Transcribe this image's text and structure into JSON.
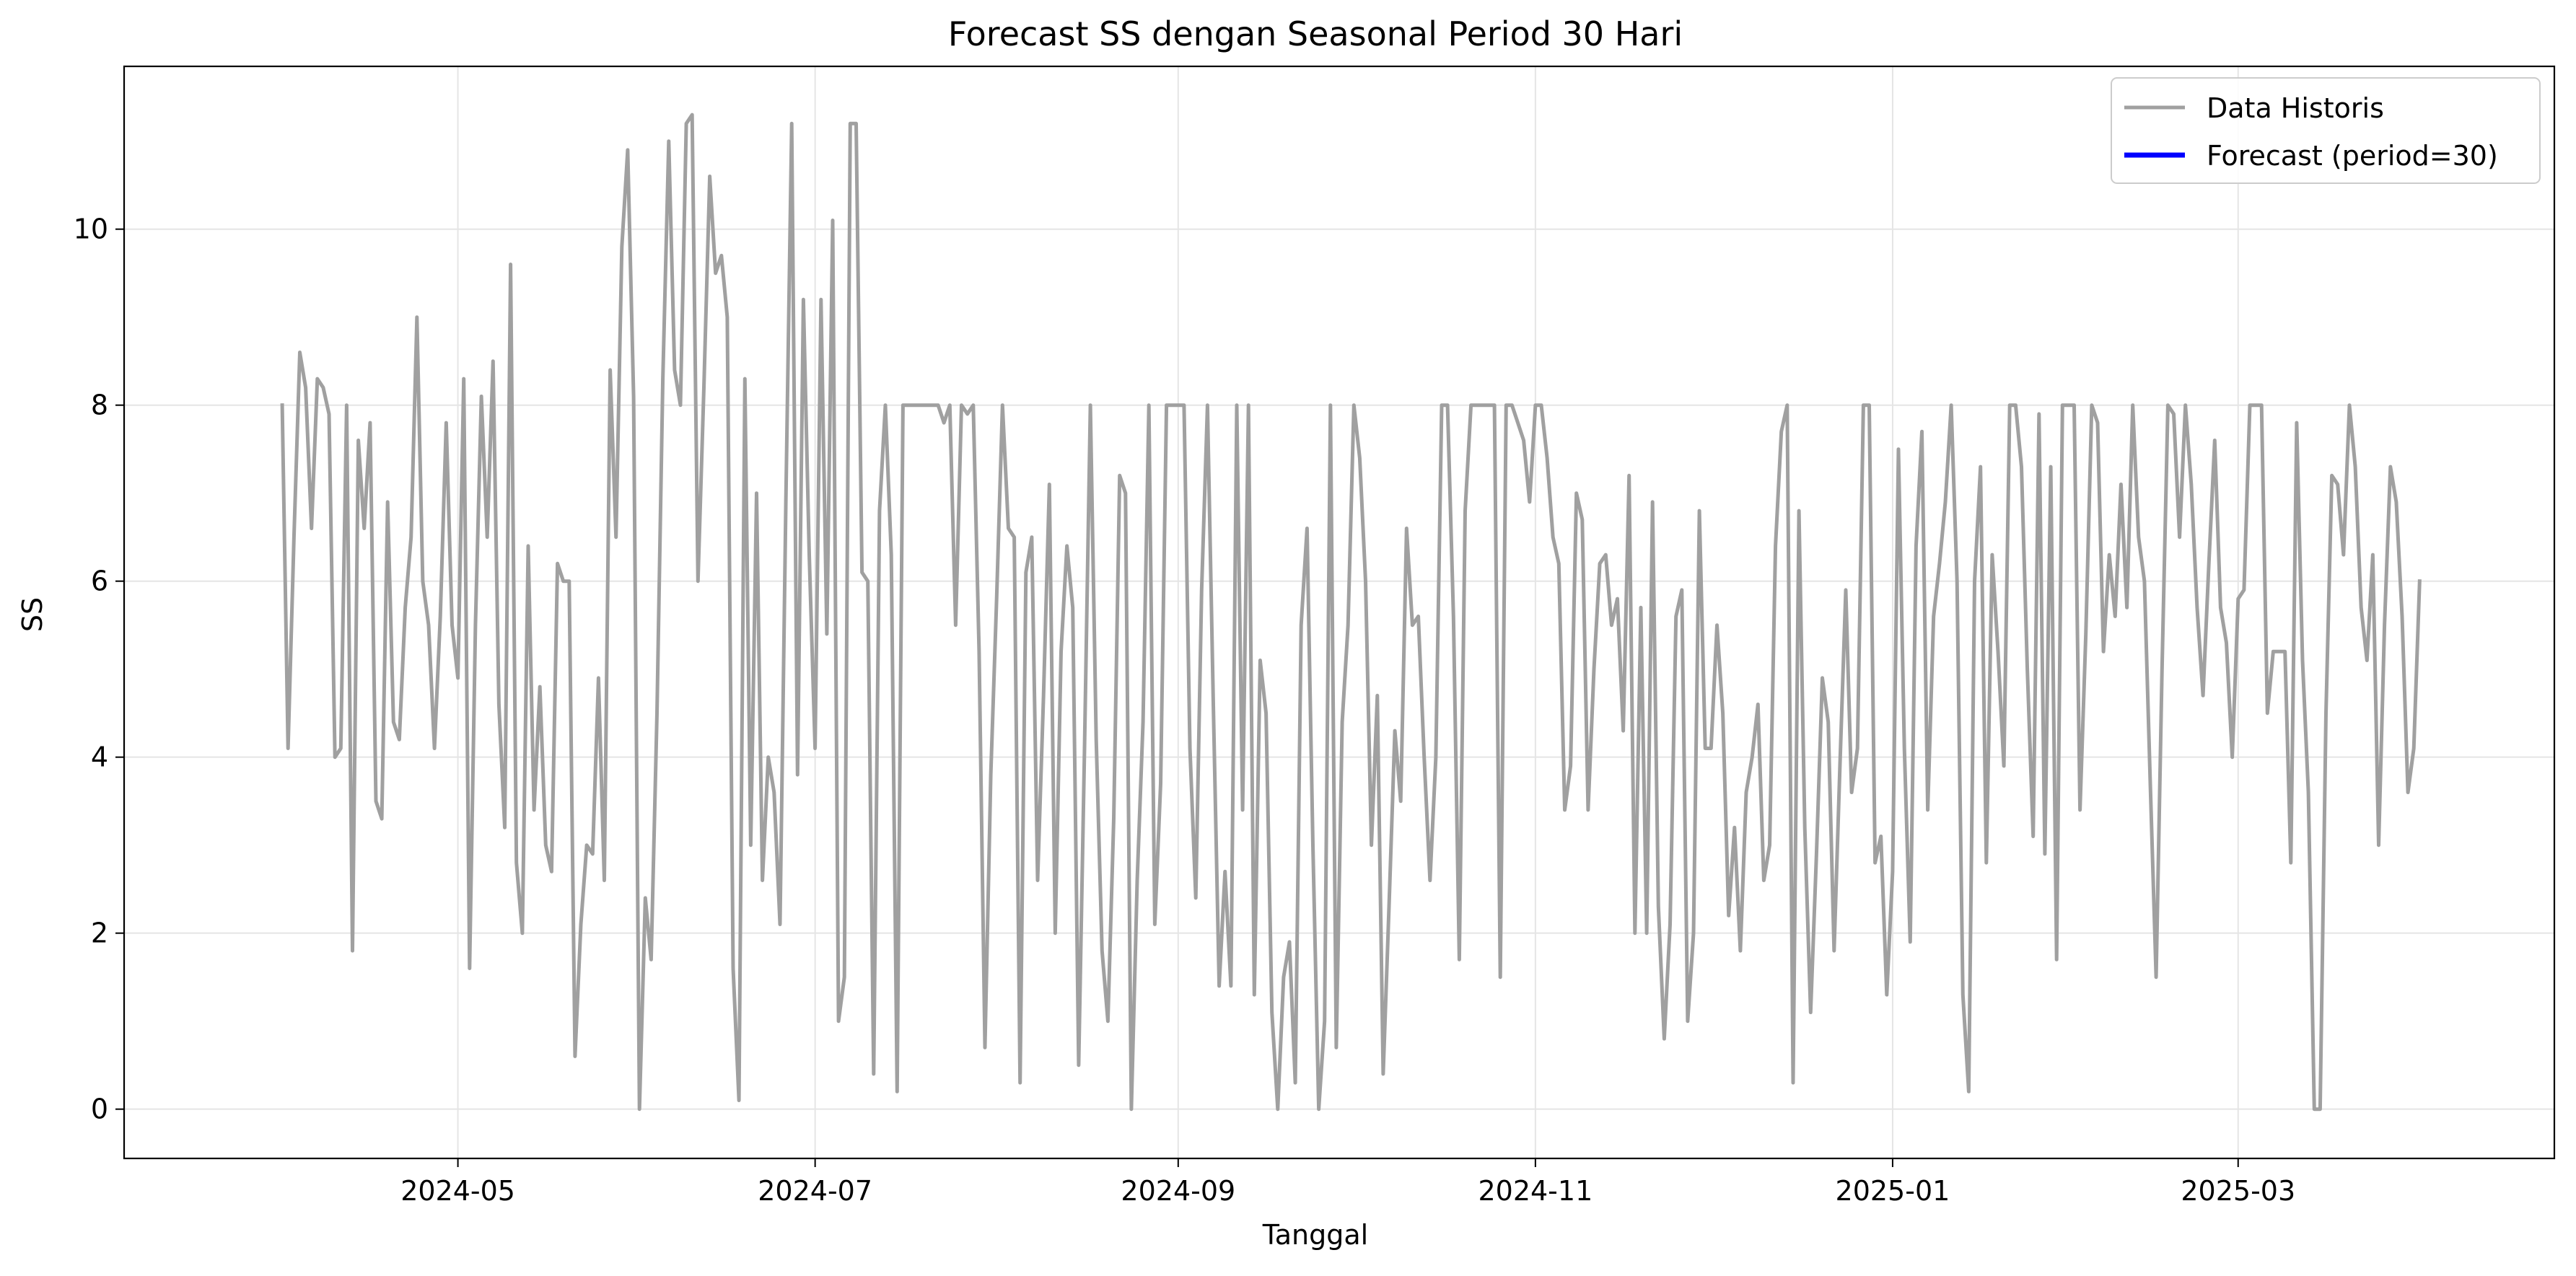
{
  "chart_data": {
    "type": "line",
    "title": "Forecast SS dengan Seasonal Period 30 Hari",
    "xlabel": "Tanggal",
    "ylabel": "SS",
    "x_range": [
      "2024-03-05",
      "2025-04-24"
    ],
    "ylim": [
      -0.56,
      11.85
    ],
    "x_ticks": [
      {
        "date": "2024-05-01",
        "label": "2024-05"
      },
      {
        "date": "2024-07-01",
        "label": "2024-07"
      },
      {
        "date": "2024-09-01",
        "label": "2024-09"
      },
      {
        "date": "2024-11-01",
        "label": "2024-11"
      },
      {
        "date": "2025-01-01",
        "label": "2025-01"
      },
      {
        "date": "2025-03-01",
        "label": "2025-03"
      }
    ],
    "y_ticks": [
      0,
      2,
      4,
      6,
      8,
      10
    ],
    "grid": true,
    "legend_position": "top-right",
    "series": [
      {
        "name": "Data Historis",
        "color": "#a0a0a0",
        "x_start": "2024-04-01",
        "step": "1 day",
        "values": [
          8.0,
          4.1,
          6.5,
          8.6,
          8.2,
          6.6,
          8.3,
          8.2,
          7.9,
          4.0,
          4.1,
          8.0,
          1.8,
          7.6,
          6.6,
          7.8,
          3.5,
          3.3,
          6.9,
          4.4,
          4.2,
          5.7,
          6.5,
          9.0,
          6.0,
          5.5,
          4.1,
          5.6,
          7.8,
          5.5,
          4.9,
          8.3,
          1.6,
          5.5,
          8.1,
          6.5,
          8.5,
          4.6,
          3.2,
          9.6,
          2.8,
          2.0,
          6.4,
          3.4,
          4.8,
          3.0,
          2.7,
          6.2,
          6.0,
          6.0,
          0.6,
          2.1,
          3.0,
          2.9,
          4.9,
          2.6,
          8.4,
          6.5,
          9.8,
          10.9,
          8.1,
          0.0,
          2.4,
          1.7,
          4.5,
          8.3,
          11.0,
          8.4,
          8.0,
          11.2,
          11.3,
          6.0,
          8.2,
          10.6,
          9.5,
          9.7,
          9.0,
          1.6,
          0.1,
          8.3,
          3.0,
          7.0,
          2.6,
          4.0,
          3.6,
          2.1,
          6.9,
          11.2,
          3.8,
          9.2,
          6.3,
          4.1,
          9.2,
          5.4,
          10.1,
          1.0,
          1.5,
          11.2,
          11.2,
          6.1,
          6.0,
          0.4,
          6.8,
          8.0,
          6.3,
          0.2,
          8.0,
          8.0,
          8.0,
          8.0,
          8.0,
          8.0,
          8.0,
          7.8,
          8.0,
          5.5,
          8.0,
          7.9,
          8.0,
          5.2,
          0.7,
          3.8,
          5.8,
          8.0,
          6.6,
          6.5,
          0.3,
          6.1,
          6.5,
          2.6,
          4.7,
          7.1,
          2.0,
          5.2,
          6.4,
          5.7,
          0.5,
          4.1,
          8.0,
          4.2,
          1.8,
          1.0,
          3.3,
          7.2,
          7.0,
          0.0,
          2.6,
          4.4,
          8.0,
          2.1,
          3.7,
          8.0,
          8.0,
          8.0,
          8.0,
          4.1,
          2.4,
          5.9,
          8.0,
          4.6,
          1.4,
          2.7,
          1.4,
          8.0,
          3.4,
          8.0,
          1.3,
          5.1,
          4.5,
          1.1,
          0.0,
          1.5,
          1.9,
          0.3,
          5.5,
          6.6,
          3.0,
          0.0,
          1.0,
          8.0,
          0.7,
          4.4,
          5.5,
          8.0,
          7.4,
          6.0,
          3.0,
          4.7,
          0.4,
          2.3,
          4.3,
          3.5,
          6.6,
          5.5,
          5.6,
          4.0,
          2.6,
          4.0,
          8.0,
          8.0,
          5.6,
          1.7,
          6.8,
          8.0,
          8.0,
          8.0,
          8.0,
          8.0,
          1.5,
          8.0,
          8.0,
          7.8,
          7.6,
          6.9,
          8.0,
          8.0,
          7.4,
          6.5,
          6.2,
          3.4,
          3.9,
          7.0,
          6.7,
          3.4,
          5.0,
          6.2,
          6.3,
          5.5,
          5.8,
          4.3,
          7.2,
          2.0,
          5.7,
          2.0,
          6.9,
          2.3,
          0.8,
          2.1,
          5.6,
          5.9,
          1.0,
          2.0,
          6.8,
          4.1,
          4.1,
          5.5,
          4.5,
          2.2,
          3.2,
          1.8,
          3.6,
          4.0,
          4.6,
          2.6,
          3.0,
          6.4,
          7.7,
          8.0,
          0.3,
          6.8,
          3.2,
          1.1,
          2.9,
          4.9,
          4.4,
          1.8,
          3.9,
          5.9,
          3.6,
          4.1,
          8.0,
          8.0,
          2.8,
          3.1,
          1.3,
          2.7,
          7.5,
          4.1,
          1.9,
          6.4,
          7.7,
          3.4,
          5.6,
          6.2,
          6.9,
          8.0,
          6.0,
          1.3,
          0.2,
          6.0,
          7.3,
          2.8,
          6.3,
          5.2,
          3.9,
          8.0,
          8.0,
          7.3,
          5.0,
          3.1,
          7.9,
          2.9,
          7.3,
          1.7,
          8.0,
          8.0,
          8.0,
          3.4,
          5.4,
          8.0,
          7.8,
          5.2,
          6.3,
          5.6,
          7.1,
          5.7,
          8.0,
          6.5,
          6.0,
          3.7,
          1.5,
          5.0,
          8.0,
          7.9,
          6.5,
          8.0,
          7.1,
          5.7,
          4.7,
          6.2,
          7.6,
          5.7,
          5.3,
          4.0,
          5.8,
          5.9,
          8.0,
          8.0,
          8.0,
          4.5,
          5.2,
          5.2,
          5.2,
          2.8,
          7.8,
          5.1,
          3.6,
          0.0,
          0.0,
          4.5,
          7.2,
          7.1,
          6.3,
          8.0,
          7.3,
          5.7,
          5.1,
          6.3,
          3.0,
          5.5,
          7.3,
          6.9,
          5.6,
          3.6,
          4.1,
          6.0
        ]
      },
      {
        "name": "Forecast (period=30)",
        "color": "#0000ff",
        "values": []
      }
    ]
  }
}
